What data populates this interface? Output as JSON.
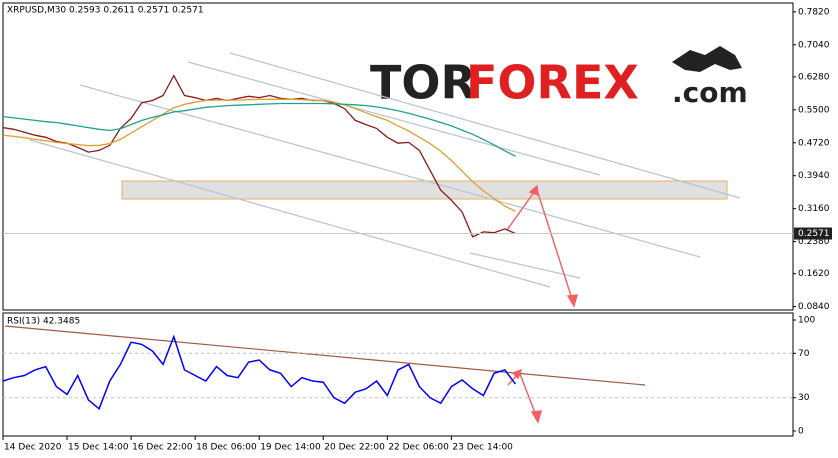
{
  "chart_data": [
    {
      "type": "line",
      "title": "XRPUSD,M30  0.2593 0.2611 0.2571 0.2571",
      "categories": [
        "14 Dec 2020",
        null,
        null,
        null,
        null,
        null,
        "15 Dec 14:00",
        null,
        null,
        null,
        null,
        null,
        "16 Dec 22:00",
        null,
        null,
        null,
        null,
        null,
        "18 Dec 06:00",
        null,
        null,
        null,
        null,
        null,
        "19 Dec 14:00",
        null,
        null,
        null,
        null,
        null,
        "20 Dec 22:00",
        null,
        null,
        null,
        null,
        null,
        "22 Dec 06:00",
        null,
        null,
        null,
        null,
        null,
        "23 Dec 14:00",
        null,
        null,
        null,
        null,
        null,
        null,
        null,
        null,
        null,
        null,
        null,
        null,
        null,
        null,
        null,
        null,
        null,
        null,
        null,
        null,
        null,
        null,
        null,
        null,
        null,
        null,
        null,
        null,
        null,
        null,
        null
      ],
      "series": [
        {
          "color": "#8b1a1a",
          "values": [
            0.508,
            0.504,
            0.497,
            0.49,
            0.485,
            0.475,
            0.471,
            0.461,
            0.45,
            0.454,
            0.466,
            0.506,
            0.53,
            0.567,
            0.572,
            0.584,
            0.631,
            0.584,
            0.579,
            0.572,
            0.577,
            0.572,
            0.577,
            0.582,
            0.579,
            0.584,
            0.577,
            0.575,
            0.577,
            0.572,
            0.572,
            0.565,
            0.553,
            0.525,
            0.515,
            0.506,
            0.485,
            0.471,
            0.473,
            0.454,
            0.407,
            0.36,
            0.336,
            0.308,
            0.249,
            0.261,
            0.259,
            0.268,
            0.2571,
            null,
            null,
            null,
            null,
            null,
            null,
            null,
            null,
            null,
            null,
            null,
            null,
            null,
            null,
            null,
            null,
            null,
            null,
            null,
            null,
            null,
            null,
            null,
            null,
            null
          ]
        },
        {
          "color": "#e0a030",
          "values": [
            0.49,
            0.487,
            0.484,
            0.48,
            0.477,
            0.473,
            0.47,
            0.468,
            0.465,
            0.466,
            0.47,
            0.48,
            0.495,
            0.51,
            0.525,
            0.54,
            0.555,
            0.563,
            0.568,
            0.572,
            0.573,
            0.573,
            0.573,
            0.574,
            0.575,
            0.575,
            0.575,
            0.575,
            0.574,
            0.573,
            0.572,
            0.568,
            0.562,
            0.553,
            0.543,
            0.534,
            0.525,
            0.512,
            0.5,
            0.485,
            0.47,
            0.452,
            0.43,
            0.405,
            0.38,
            0.358,
            0.34,
            0.322,
            0.31,
            null,
            null,
            null,
            null,
            null,
            null,
            null,
            null,
            null,
            null,
            null,
            null,
            null,
            null,
            null,
            null,
            null,
            null,
            null,
            null,
            null,
            null,
            null,
            null,
            null
          ]
        },
        {
          "color": "#20a090",
          "values": [
            0.534,
            0.531,
            0.528,
            0.525,
            0.522,
            0.52,
            0.516,
            0.512,
            0.508,
            0.504,
            0.501,
            0.505,
            0.515,
            0.525,
            0.532,
            0.538,
            0.545,
            0.548,
            0.552,
            0.556,
            0.558,
            0.56,
            0.561,
            0.562,
            0.563,
            0.564,
            0.565,
            0.565,
            0.565,
            0.565,
            0.565,
            0.564,
            0.563,
            0.562,
            0.56,
            0.557,
            0.553,
            0.548,
            0.542,
            0.535,
            0.528,
            0.52,
            0.512,
            0.502,
            0.492,
            0.48,
            0.467,
            0.453,
            0.44,
            null,
            null,
            null,
            null,
            null,
            null,
            null,
            null,
            null,
            null,
            null,
            null,
            null,
            null,
            null,
            null,
            null,
            null,
            null,
            null,
            null,
            null,
            null,
            null,
            null
          ]
        }
      ],
      "ylim": [
        0.076,
        0.803
      ],
      "yticks": [
        {
          "value": 0.782,
          "label": "0.7820"
        },
        {
          "value": 0.704,
          "label": "0.7040"
        },
        {
          "value": 0.628,
          "label": "0.6280"
        },
        {
          "value": 0.55,
          "label": "0.5500"
        },
        {
          "value": 0.472,
          "label": "0.4720"
        },
        {
          "value": 0.394,
          "label": "0.3940"
        },
        {
          "value": 0.316,
          "label": "0.3160"
        },
        {
          "value": 0.238,
          "label": "0.2380"
        },
        {
          "value": 0.162,
          "label": "0.1620"
        },
        {
          "value": 0.084,
          "label": "0.0840"
        }
      ],
      "last_price": 0.2571
    },
    {
      "type": "line",
      "title": "RSI(13) 42.3485",
      "series": [
        {
          "color": "#0000ff",
          "values": [
            45,
            48,
            50,
            55,
            58,
            40,
            33,
            50,
            28,
            20,
            45,
            60,
            80,
            78,
            72,
            60,
            85,
            55,
            50,
            45,
            58,
            50,
            48,
            62,
            64,
            55,
            52,
            40,
            48,
            45,
            44,
            30,
            25,
            35,
            38,
            45,
            32,
            55,
            60,
            40,
            30,
            25,
            40,
            46,
            38,
            32,
            52,
            55,
            42.3485,
            null,
            null,
            null,
            null,
            null,
            null,
            null,
            null,
            null,
            null,
            null,
            null,
            null,
            null,
            null,
            null,
            null,
            null,
            null,
            null,
            null,
            null,
            null,
            null,
            null
          ]
        }
      ],
      "ylim": [
        -4.5,
        106.3
      ],
      "yticks": [
        100,
        70,
        30,
        0
      ]
    }
  ],
  "watermark": {
    "part1": "TOR",
    "part2": "FOREX",
    "part3": ".com"
  }
}
